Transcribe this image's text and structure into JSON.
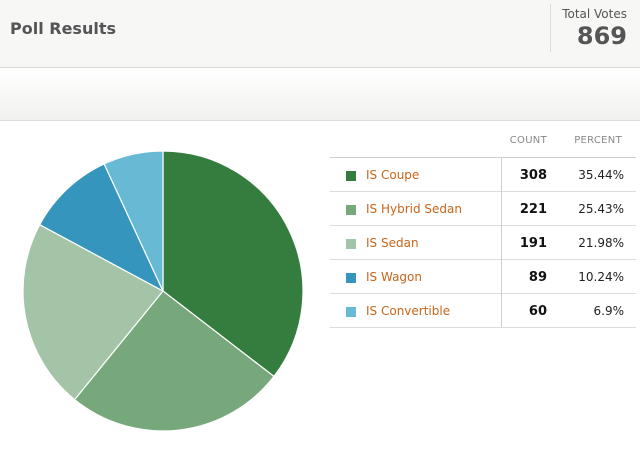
{
  "header": {
    "title": "Poll Results",
    "total_votes_label": "Total Votes",
    "total_votes_value": "869"
  },
  "table": {
    "count_header": "COUNT",
    "percent_header": "PERCENT",
    "rows": [
      {
        "label": "IS Coupe",
        "count": "308",
        "percent": "35.44%",
        "color": "#357d3e"
      },
      {
        "label": "IS Hybrid Sedan",
        "count": "221",
        "percent": "25.43%",
        "color": "#76a87b"
      },
      {
        "label": "IS Sedan",
        "count": "191",
        "percent": "21.98%",
        "color": "#a3c4a6"
      },
      {
        "label": "IS Wagon",
        "count": "89",
        "percent": "10.24%",
        "color": "#3595bd"
      },
      {
        "label": "IS Convertible",
        "count": "60",
        "percent": "6.9%",
        "color": "#67b9d4"
      }
    ]
  },
  "chart_data": {
    "type": "pie",
    "categories": [
      "IS Coupe",
      "IS Hybrid Sedan",
      "IS Sedan",
      "IS Wagon",
      "IS Convertible"
    ],
    "values": [
      308,
      221,
      191,
      89,
      60
    ],
    "colors": [
      "#357d3e",
      "#76a87b",
      "#a3c4a6",
      "#3595bd",
      "#67b9d4"
    ],
    "start": "top",
    "direction": "clockwise"
  }
}
